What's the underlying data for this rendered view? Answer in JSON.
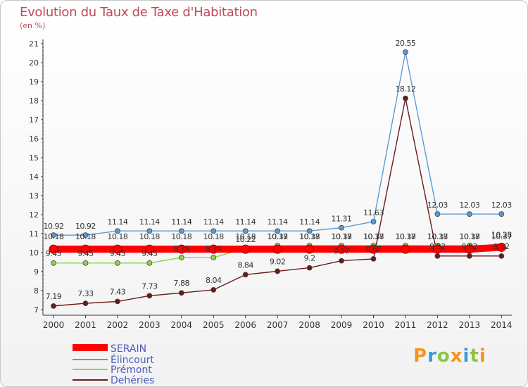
{
  "header": {
    "title": "Evolution du Taux de Taxe d'Habitation",
    "unit": "(en %)"
  },
  "logo": {
    "text": "Proxiti",
    "colors": [
      "#f7941d",
      "#3a9ad9",
      "#8dc63f",
      "#f7941d",
      "#3a9ad9",
      "#8dc63f",
      "#f7941d"
    ]
  },
  "chart_data": {
    "type": "line",
    "categories": [
      "2000",
      "2001",
      "2002",
      "2003",
      "2004",
      "2005",
      "2006",
      "2007",
      "2008",
      "2009",
      "2010",
      "2011",
      "2012",
      "2013",
      "2014"
    ],
    "ylim": [
      7,
      21
    ],
    "yticks": [
      7,
      8,
      9,
      10,
      11,
      12,
      13,
      14,
      15,
      16,
      17,
      18,
      19,
      20,
      21
    ],
    "grid": false,
    "legend": "bottom-left",
    "series": [
      {
        "name": "SERAIN",
        "color": "#ff0000",
        "values": [
          10.18,
          10.18,
          10.18,
          10.18,
          10.18,
          10.18,
          10.18,
          10.18,
          10.18,
          10.18,
          10.18,
          10.18,
          10.18,
          10.18,
          10.28
        ],
        "labels": [
          "10.18",
          "10.18",
          "10.18",
          "10.18",
          "10.18",
          "10.18",
          "10.18",
          "10.18",
          "10.18",
          "10.18",
          "10.18",
          "10.18",
          "10.18",
          "10.18",
          "10.28"
        ]
      },
      {
        "name": "Élincourt",
        "color": "#5b9bd5",
        "values": [
          10.92,
          10.92,
          11.14,
          11.14,
          11.14,
          11.14,
          11.14,
          11.14,
          11.14,
          11.31,
          11.63,
          20.55,
          12.03,
          12.03,
          12.03
        ],
        "labels": [
          "10.92",
          "10.92",
          "11.14",
          "11.14",
          "11.14",
          "11.14",
          "11.14",
          "11.14",
          "11.14",
          "11.31",
          "11.63",
          "20.55",
          "12.03",
          "12.03",
          "12.03"
        ]
      },
      {
        "name": "Prémont",
        "color": "#92d050",
        "values": [
          9.45,
          9.45,
          9.45,
          9.45,
          9.74,
          9.74,
          10.22,
          10.37,
          10.37,
          10.37,
          10.37,
          10.37,
          10.37,
          10.37,
          10.37
        ],
        "labels": [
          "9.45",
          "9.45",
          "9.45",
          "9.45",
          "9.74",
          "9.74",
          "10.22",
          "10.37",
          "10.37",
          "10.37",
          "10.37",
          "10.37",
          "10.37",
          "10.37",
          "10.37"
        ]
      },
      {
        "name": "Dehéries",
        "color": "#6b1a1a",
        "values": [
          7.19,
          7.33,
          7.43,
          7.73,
          7.88,
          8.04,
          8.84,
          9.02,
          9.2,
          9.57,
          9.67,
          18.12,
          9.82,
          9.82,
          9.82
        ],
        "labels": [
          "7.19",
          "7.33",
          "7.43",
          "7.73",
          "7.88",
          "8.04",
          "8.84",
          "9.02",
          "9.2",
          "9.57",
          "9.67",
          "18.12",
          "9.82",
          "9.82",
          "9.82"
        ]
      }
    ]
  }
}
